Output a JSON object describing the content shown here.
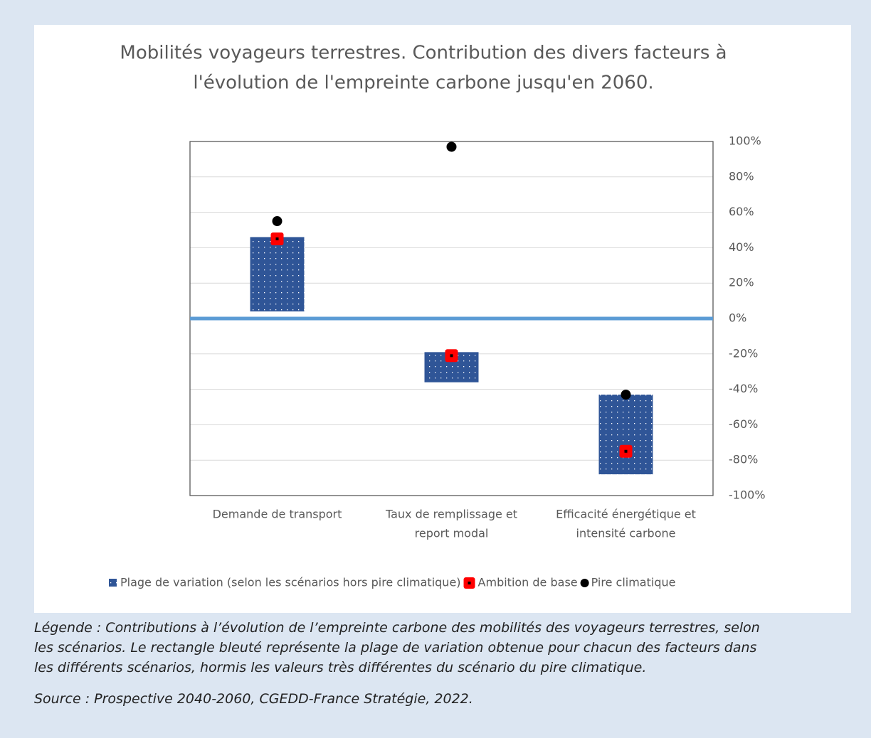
{
  "chart_data": {
    "type": "range",
    "title": [
      "Mobilités voyageurs terrestres. Contribution des divers facteurs à",
      "l'évolution de l'empreinte carbone jusqu'en 2060."
    ],
    "categories": [
      [
        "Demande de transport"
      ],
      [
        "Taux de remplissage et",
        "report modal"
      ],
      [
        "Efficacité énergétique et",
        "intensité carbone"
      ]
    ],
    "series": [
      {
        "name": "Plage de variation (selon les scénarios hors pire climatique)",
        "color": "#2f5597",
        "low": [
          4,
          -36,
          -88
        ],
        "high": [
          46,
          -19,
          -43
        ]
      },
      {
        "name": "Ambition de base",
        "color": "#ff0000",
        "values": [
          45,
          -21,
          -75
        ]
      },
      {
        "name": "Pire climatique",
        "color": "#000000",
        "values": [
          55,
          97,
          -43
        ]
      }
    ],
    "ylim": [
      -100,
      100
    ],
    "yticks": [
      {
        "value": -100,
        "label": "-100%"
      },
      {
        "value": -80,
        "label": "-80%"
      },
      {
        "value": -60,
        "label": "-60%"
      },
      {
        "value": -40,
        "label": "-40%"
      },
      {
        "value": -20,
        "label": "-20%"
      },
      {
        "value": 0,
        "label": "0%"
      },
      {
        "value": 20,
        "label": "20%"
      },
      {
        "value": 40,
        "label": "40%"
      },
      {
        "value": 60,
        "label": "60%"
      },
      {
        "value": 80,
        "label": "80%"
      },
      {
        "value": 100,
        "label": "100%"
      }
    ],
    "grid": true,
    "legend": "bottom",
    "axis_side": "right"
  },
  "caption": [
    "Légende : Contributions à l’évolution de l’empreinte carbone des mobilités des voyageurs terrestres, selon",
    "les scénarios. Le rectangle bleuté représente la plage de variation obtenue pour chacun des facteurs dans",
    "les différents scénarios, hormis les valeurs très différentes du scénario du pire climatique."
  ],
  "source": "Source : Prospective 2040-2060, CGEDD-France Stratégie, 2022."
}
